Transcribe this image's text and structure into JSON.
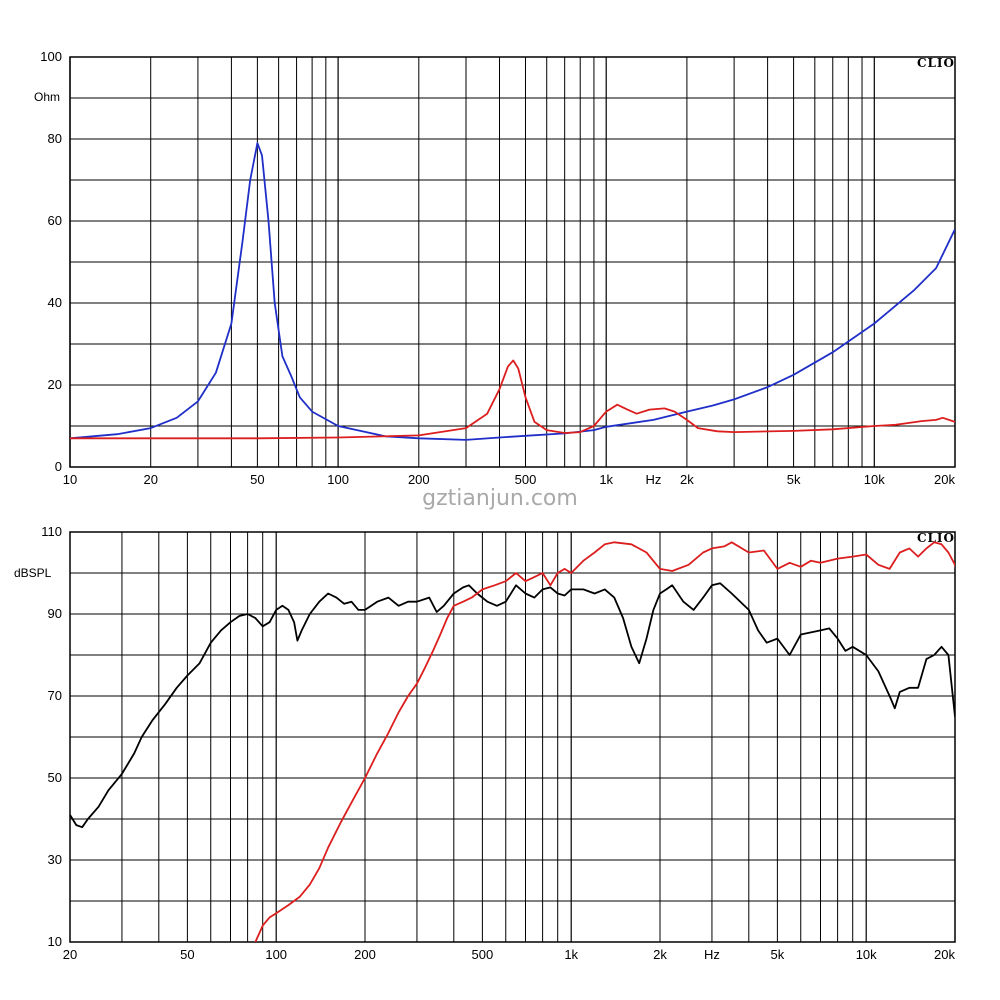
{
  "watermark": "gztianjun.com",
  "chart_data": [
    {
      "type": "line",
      "brand": "CLIO",
      "ylabel": "Ohm",
      "xunit": "Hz",
      "xscale": "log",
      "xlim": [
        10,
        20000
      ],
      "ylim": [
        0,
        100
      ],
      "grid": true,
      "x_ticks": [
        {
          "v": 10,
          "t": "10"
        },
        {
          "v": 20,
          "t": "20"
        },
        {
          "v": 50,
          "t": "50"
        },
        {
          "v": 100,
          "t": "100"
        },
        {
          "v": 200,
          "t": "200"
        },
        {
          "v": 500,
          "t": "500"
        },
        {
          "v": 1000,
          "t": "1k"
        },
        {
          "v": 2000,
          "t": "2k"
        },
        {
          "v": 5000,
          "t": "5k"
        },
        {
          "v": 10000,
          "t": "10k"
        },
        {
          "v": 20000,
          "t": "20k"
        }
      ],
      "y_ticks": [
        {
          "v": 0,
          "t": "0"
        },
        {
          "v": 20,
          "t": "20"
        },
        {
          "v": 40,
          "t": "40"
        },
        {
          "v": 60,
          "t": "60"
        },
        {
          "v": 80,
          "t": "80"
        },
        {
          "v": 100,
          "t": "100"
        }
      ],
      "series": [
        {
          "color": "#1f2fc8",
          "points": [
            [
              10,
              7
            ],
            [
              15,
              8
            ],
            [
              20,
              9.5
            ],
            [
              25,
              12
            ],
            [
              30,
              16
            ],
            [
              35,
              23
            ],
            [
              40,
              35
            ],
            [
              44,
              55
            ],
            [
              47,
              70
            ],
            [
              50,
              79
            ],
            [
              52,
              76
            ],
            [
              55,
              60
            ],
            [
              58,
              40
            ],
            [
              62,
              27
            ],
            [
              67,
              22
            ],
            [
              72,
              17
            ],
            [
              80,
              13.5
            ],
            [
              100,
              10
            ],
            [
              150,
              7.5
            ],
            [
              200,
              7
            ],
            [
              300,
              6.6
            ],
            [
              400,
              7.2
            ],
            [
              500,
              7.6
            ],
            [
              700,
              8.2
            ],
            [
              900,
              9
            ],
            [
              1000,
              9.8
            ],
            [
              1500,
              11.5
            ],
            [
              2000,
              13.5
            ],
            [
              2500,
              15
            ],
            [
              3000,
              16.5
            ],
            [
              4000,
              19.5
            ],
            [
              5000,
              22.5
            ],
            [
              7000,
              28
            ],
            [
              10000,
              35
            ],
            [
              14000,
              43
            ],
            [
              17000,
              48.5
            ],
            [
              20000,
              58
            ]
          ]
        },
        {
          "color": "#dc1e1e",
          "points": [
            [
              10,
              7
            ],
            [
              50,
              7
            ],
            [
              100,
              7.2
            ],
            [
              200,
              7.7
            ],
            [
              300,
              9.5
            ],
            [
              360,
              13
            ],
            [
              400,
              19
            ],
            [
              430,
              24.5
            ],
            [
              450,
              26
            ],
            [
              470,
              24
            ],
            [
              500,
              17
            ],
            [
              540,
              11
            ],
            [
              600,
              9
            ],
            [
              700,
              8.3
            ],
            [
              800,
              8.5
            ],
            [
              900,
              10
            ],
            [
              1000,
              13.5
            ],
            [
              1100,
              15.2
            ],
            [
              1200,
              14
            ],
            [
              1300,
              13
            ],
            [
              1450,
              14
            ],
            [
              1650,
              14.3
            ],
            [
              1800,
              13.5
            ],
            [
              2000,
              11.5
            ],
            [
              2200,
              9.5
            ],
            [
              2600,
              8.7
            ],
            [
              3000,
              8.5
            ],
            [
              5000,
              8.8
            ],
            [
              7000,
              9.2
            ],
            [
              10000,
              10
            ],
            [
              12000,
              10.3
            ],
            [
              13000,
              10.6
            ],
            [
              15000,
              11.2
            ],
            [
              17000,
              11.5
            ],
            [
              18000,
              12
            ],
            [
              19000,
              11.5
            ],
            [
              20000,
              11
            ]
          ]
        }
      ]
    },
    {
      "type": "line",
      "brand": "CLIO",
      "ylabel": "dBSPL",
      "xunit": "Hz",
      "xscale": "log",
      "xlim": [
        20,
        20000
      ],
      "ylim": [
        10,
        110
      ],
      "grid": true,
      "x_ticks": [
        {
          "v": 20,
          "t": "20"
        },
        {
          "v": 50,
          "t": "50"
        },
        {
          "v": 100,
          "t": "100"
        },
        {
          "v": 200,
          "t": "200"
        },
        {
          "v": 500,
          "t": "500"
        },
        {
          "v": 1000,
          "t": "1k"
        },
        {
          "v": 2000,
          "t": "2k"
        },
        {
          "v": 5000,
          "t": "5k"
        },
        {
          "v": 10000,
          "t": "10k"
        },
        {
          "v": 20000,
          "t": "20k"
        }
      ],
      "y_ticks": [
        {
          "v": 10,
          "t": "10"
        },
        {
          "v": 30,
          "t": "30"
        },
        {
          "v": 50,
          "t": "50"
        },
        {
          "v": 70,
          "t": "70"
        },
        {
          "v": 90,
          "t": "90"
        },
        {
          "v": 110,
          "t": "110"
        }
      ],
      "series": [
        {
          "color": "#000000",
          "points": [
            [
              20,
              41
            ],
            [
              21,
              38.5
            ],
            [
              22,
              38
            ],
            [
              23,
              40
            ],
            [
              25,
              43
            ],
            [
              27,
              47
            ],
            [
              30,
              51
            ],
            [
              33,
              56
            ],
            [
              35,
              60
            ],
            [
              38,
              64
            ],
            [
              42,
              68
            ],
            [
              46,
              72
            ],
            [
              50,
              75
            ],
            [
              55,
              78
            ],
            [
              60,
              83
            ],
            [
              65,
              86
            ],
            [
              70,
              88
            ],
            [
              75,
              89.5
            ],
            [
              80,
              90
            ],
            [
              85,
              89
            ],
            [
              90,
              87
            ],
            [
              95,
              88
            ],
            [
              100,
              91
            ],
            [
              105,
              92
            ],
            [
              110,
              91
            ],
            [
              115,
              88
            ],
            [
              118,
              83.5
            ],
            [
              122,
              86
            ],
            [
              130,
              90
            ],
            [
              140,
              93
            ],
            [
              150,
              95
            ],
            [
              160,
              94
            ],
            [
              170,
              92.5
            ],
            [
              180,
              93
            ],
            [
              190,
              91
            ],
            [
              200,
              91
            ],
            [
              220,
              93
            ],
            [
              240,
              94
            ],
            [
              260,
              92
            ],
            [
              280,
              93
            ],
            [
              300,
              93
            ],
            [
              330,
              94
            ],
            [
              350,
              90.5
            ],
            [
              370,
              92
            ],
            [
              400,
              95
            ],
            [
              430,
              96.5
            ],
            [
              450,
              97
            ],
            [
              480,
              95
            ],
            [
              520,
              93
            ],
            [
              560,
              92
            ],
            [
              600,
              93
            ],
            [
              650,
              97
            ],
            [
              700,
              95
            ],
            [
              750,
              94
            ],
            [
              800,
              96
            ],
            [
              850,
              96.5
            ],
            [
              900,
              95
            ],
            [
              950,
              94.5
            ],
            [
              1000,
              96
            ],
            [
              1100,
              96
            ],
            [
              1200,
              95
            ],
            [
              1300,
              96
            ],
            [
              1400,
              94
            ],
            [
              1500,
              89
            ],
            [
              1600,
              82
            ],
            [
              1700,
              78
            ],
            [
              1800,
              84
            ],
            [
              1900,
              91
            ],
            [
              2000,
              95
            ],
            [
              2100,
              96
            ],
            [
              2200,
              97
            ],
            [
              2400,
              93
            ],
            [
              2600,
              91
            ],
            [
              2800,
              94
            ],
            [
              3000,
              97
            ],
            [
              3200,
              97.5
            ],
            [
              3500,
              95
            ],
            [
              4000,
              91
            ],
            [
              4300,
              86
            ],
            [
              4600,
              83
            ],
            [
              5000,
              84
            ],
            [
              5500,
              80
            ],
            [
              6000,
              85
            ],
            [
              7000,
              86
            ],
            [
              7500,
              86.5
            ],
            [
              8000,
              84
            ],
            [
              8500,
              81
            ],
            [
              9000,
              82
            ],
            [
              10000,
              80
            ],
            [
              11000,
              76
            ],
            [
              12000,
              70
            ],
            [
              12500,
              67
            ],
            [
              13000,
              71
            ],
            [
              14000,
              72
            ],
            [
              15000,
              72
            ],
            [
              16000,
              79
            ],
            [
              17000,
              80
            ],
            [
              18000,
              82
            ],
            [
              19000,
              80
            ],
            [
              20000,
              65
            ],
            [
              20500,
              64
            ],
            [
              21000,
              66
            ]
          ]
        },
        {
          "color": "#dc1e1e",
          "points": [
            [
              85,
              10
            ],
            [
              90,
              14
            ],
            [
              95,
              16
            ],
            [
              100,
              17
            ],
            [
              110,
              19
            ],
            [
              120,
              21
            ],
            [
              130,
              24
            ],
            [
              140,
              28
            ],
            [
              150,
              33
            ],
            [
              165,
              39
            ],
            [
              180,
              44
            ],
            [
              200,
              50
            ],
            [
              220,
              56
            ],
            [
              240,
              61
            ],
            [
              260,
              66
            ],
            [
              280,
              70
            ],
            [
              300,
              73
            ],
            [
              320,
              77
            ],
            [
              340,
              81
            ],
            [
              360,
              85
            ],
            [
              380,
              89
            ],
            [
              400,
              92
            ],
            [
              430,
              93
            ],
            [
              460,
              94
            ],
            [
              500,
              96
            ],
            [
              550,
              97
            ],
            [
              600,
              98
            ],
            [
              650,
              100
            ],
            [
              700,
              98
            ],
            [
              750,
              99
            ],
            [
              800,
              100
            ],
            [
              850,
              97
            ],
            [
              900,
              100
            ],
            [
              950,
              101
            ],
            [
              1000,
              100
            ],
            [
              1100,
              103
            ],
            [
              1200,
              105
            ],
            [
              1300,
              107
            ],
            [
              1400,
              107.5
            ],
            [
              1600,
              107
            ],
            [
              1800,
              105
            ],
            [
              2000,
              101
            ],
            [
              2200,
              100.5
            ],
            [
              2500,
              102
            ],
            [
              2800,
              105
            ],
            [
              3000,
              106
            ],
            [
              3300,
              106.5
            ],
            [
              3500,
              107.5
            ],
            [
              4000,
              105
            ],
            [
              4500,
              105.5
            ],
            [
              5000,
              101
            ],
            [
              5500,
              102.5
            ],
            [
              6000,
              101.5
            ],
            [
              6500,
              103
            ],
            [
              7000,
              102.5
            ],
            [
              8000,
              103.5
            ],
            [
              9000,
              104
            ],
            [
              10000,
              104.5
            ],
            [
              11000,
              102
            ],
            [
              12000,
              101
            ],
            [
              13000,
              105
            ],
            [
              14000,
              106
            ],
            [
              15000,
              104
            ],
            [
              16000,
              106
            ],
            [
              17000,
              107.5
            ],
            [
              18000,
              107
            ],
            [
              19000,
              105
            ],
            [
              20000,
              102
            ],
            [
              21000,
              96
            ]
          ]
        }
      ]
    }
  ]
}
